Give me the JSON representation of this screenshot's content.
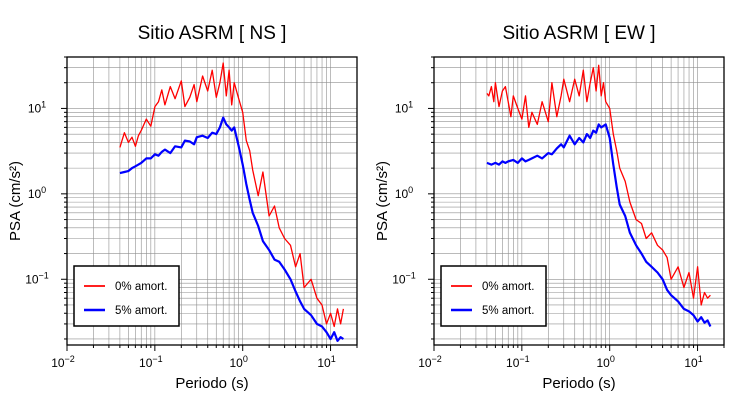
{
  "chart_data": [
    {
      "type": "line",
      "title": "Sitio ASRM [ NS ]",
      "xlabel": "Periodo (s)",
      "ylabel": "PSA (cm/s²)",
      "xscale": "log",
      "yscale": "log",
      "xlim": [
        0.01,
        20
      ],
      "ylim": [
        0.017,
        40
      ],
      "grid": true,
      "legend_position": "bottom-left",
      "x_ticks": [
        {
          "base": "10",
          "exp": "−2",
          "value": 0.01
        },
        {
          "base": "10",
          "exp": "−1",
          "value": 0.1
        },
        {
          "base": "10",
          "exp": "0",
          "value": 1
        },
        {
          "base": "10",
          "exp": "1",
          "value": 10
        }
      ],
      "y_ticks": [
        {
          "base": "10",
          "exp": "−1",
          "value": 0.1
        },
        {
          "base": "10",
          "exp": "0",
          "value": 1
        },
        {
          "base": "10",
          "exp": "1",
          "value": 10
        }
      ],
      "series": [
        {
          "name": "0% amort.",
          "color": "#ff0000",
          "x": [
            0.04,
            0.045,
            0.05,
            0.055,
            0.06,
            0.065,
            0.07,
            0.08,
            0.09,
            0.1,
            0.11,
            0.12,
            0.13,
            0.15,
            0.17,
            0.2,
            0.22,
            0.25,
            0.28,
            0.3,
            0.35,
            0.4,
            0.45,
            0.5,
            0.55,
            0.6,
            0.65,
            0.7,
            0.75,
            0.8,
            0.9,
            1.0,
            1.1,
            1.2,
            1.3,
            1.5,
            1.7,
            2.0,
            2.3,
            2.6,
            3.0,
            3.5,
            4.0,
            4.5,
            5.0,
            6.0,
            7.0,
            8.0,
            9.0,
            10.0,
            11.0,
            12.0,
            13.0,
            14.0
          ],
          "values": [
            3.5,
            5.2,
            4.0,
            4.6,
            3.6,
            4.8,
            5.5,
            7.5,
            6.2,
            10.5,
            12.0,
            16.5,
            11.0,
            18.0,
            13.0,
            21.0,
            10.5,
            13.5,
            19.0,
            12.0,
            24.0,
            16.0,
            28.0,
            13.5,
            20.0,
            34.0,
            14.0,
            28.0,
            11.0,
            20.0,
            13.0,
            9.0,
            4.2,
            3.2,
            1.9,
            0.95,
            1.8,
            0.55,
            0.72,
            0.4,
            0.3,
            0.25,
            0.14,
            0.2,
            0.08,
            0.1,
            0.06,
            0.05,
            0.03,
            0.04,
            0.028,
            0.045,
            0.03,
            0.045
          ]
        },
        {
          "name": "5% amort.",
          "color": "#0000ff",
          "x": [
            0.04,
            0.045,
            0.05,
            0.055,
            0.06,
            0.065,
            0.07,
            0.08,
            0.09,
            0.1,
            0.11,
            0.12,
            0.13,
            0.15,
            0.17,
            0.2,
            0.22,
            0.25,
            0.28,
            0.3,
            0.35,
            0.4,
            0.45,
            0.5,
            0.55,
            0.6,
            0.65,
            0.7,
            0.75,
            0.8,
            0.9,
            1.0,
            1.1,
            1.2,
            1.3,
            1.5,
            1.7,
            2.0,
            2.3,
            2.6,
            3.0,
            3.5,
            4.0,
            4.5,
            5.0,
            6.0,
            7.0,
            8.0,
            9.0,
            10.0,
            11.0,
            12.0,
            13.0,
            14.0
          ],
          "values": [
            1.75,
            1.8,
            1.85,
            2.0,
            2.1,
            2.2,
            2.3,
            2.6,
            2.6,
            2.9,
            2.8,
            3.1,
            3.3,
            3.0,
            3.6,
            3.5,
            4.2,
            4.1,
            3.8,
            4.6,
            4.8,
            4.5,
            5.2,
            5.0,
            6.0,
            7.8,
            6.5,
            6.0,
            5.5,
            6.0,
            3.6,
            2.2,
            1.3,
            0.85,
            0.6,
            0.42,
            0.28,
            0.22,
            0.17,
            0.16,
            0.13,
            0.1,
            0.072,
            0.055,
            0.045,
            0.038,
            0.03,
            0.028,
            0.024,
            0.02,
            0.024,
            0.019,
            0.021,
            0.02
          ]
        }
      ]
    },
    {
      "type": "line",
      "title": "Sitio ASRM [ EW ]",
      "xlabel": "Periodo (s)",
      "ylabel": "PSA (cm/s²)",
      "xscale": "log",
      "yscale": "log",
      "xlim": [
        0.01,
        20
      ],
      "ylim": [
        0.017,
        40
      ],
      "grid": true,
      "legend_position": "bottom-left",
      "x_ticks": [
        {
          "base": "10",
          "exp": "−2",
          "value": 0.01
        },
        {
          "base": "10",
          "exp": "−1",
          "value": 0.1
        },
        {
          "base": "10",
          "exp": "0",
          "value": 1
        },
        {
          "base": "10",
          "exp": "1",
          "value": 10
        }
      ],
      "y_ticks": [
        {
          "base": "10",
          "exp": "−1",
          "value": 0.1
        },
        {
          "base": "10",
          "exp": "0",
          "value": 1
        },
        {
          "base": "10",
          "exp": "1",
          "value": 10
        }
      ],
      "series": [
        {
          "name": "0% amort.",
          "color": "#ff0000",
          "x": [
            0.04,
            0.042,
            0.045,
            0.048,
            0.05,
            0.055,
            0.06,
            0.065,
            0.07,
            0.075,
            0.08,
            0.09,
            0.1,
            0.11,
            0.12,
            0.13,
            0.15,
            0.17,
            0.2,
            0.22,
            0.25,
            0.28,
            0.3,
            0.35,
            0.4,
            0.45,
            0.5,
            0.55,
            0.6,
            0.65,
            0.7,
            0.75,
            0.8,
            0.85,
            0.9,
            1.0,
            1.1,
            1.2,
            1.3,
            1.5,
            1.7,
            2.0,
            2.3,
            2.6,
            3.0,
            3.5,
            4.0,
            4.5,
            5.0,
            6.0,
            7.0,
            8.0,
            9.0,
            10.0,
            11.0,
            12.0,
            13.0,
            14.0
          ],
          "values": [
            15.0,
            14.0,
            18.0,
            12.0,
            20.0,
            10.5,
            16.0,
            18.0,
            12.0,
            8.0,
            14.0,
            10.0,
            7.5,
            14.0,
            6.0,
            9.0,
            6.5,
            12.0,
            7.0,
            20.0,
            8.0,
            14.0,
            22.0,
            12.0,
            22.0,
            14.0,
            28.0,
            12.0,
            20.0,
            30.0,
            16.0,
            32.0,
            14.0,
            20.0,
            12.0,
            10.0,
            5.0,
            3.2,
            2.0,
            1.4,
            0.8,
            0.5,
            0.45,
            0.3,
            0.35,
            0.25,
            0.22,
            0.18,
            0.1,
            0.14,
            0.08,
            0.12,
            0.06,
            0.14,
            0.05,
            0.07,
            0.06,
            0.065
          ]
        },
        {
          "name": "5% amort.",
          "color": "#0000ff",
          "x": [
            0.04,
            0.045,
            0.05,
            0.055,
            0.06,
            0.065,
            0.07,
            0.08,
            0.09,
            0.1,
            0.11,
            0.12,
            0.13,
            0.15,
            0.17,
            0.2,
            0.22,
            0.25,
            0.28,
            0.3,
            0.35,
            0.4,
            0.45,
            0.5,
            0.55,
            0.6,
            0.65,
            0.7,
            0.75,
            0.8,
            0.9,
            1.0,
            1.1,
            1.2,
            1.3,
            1.5,
            1.7,
            2.0,
            2.3,
            2.6,
            3.0,
            3.5,
            4.0,
            4.5,
            5.0,
            6.0,
            7.0,
            8.0,
            9.0,
            10.0,
            11.0,
            12.0,
            13.0,
            14.0
          ],
          "values": [
            2.3,
            2.2,
            2.3,
            2.2,
            2.4,
            2.3,
            2.4,
            2.5,
            2.3,
            2.6,
            2.4,
            2.5,
            2.6,
            2.8,
            2.6,
            3.0,
            2.9,
            3.4,
            3.8,
            3.5,
            4.8,
            3.8,
            4.5,
            4.0,
            5.0,
            4.5,
            5.5,
            5.2,
            6.5,
            6.0,
            6.5,
            4.5,
            2.2,
            1.2,
            0.75,
            0.55,
            0.35,
            0.25,
            0.2,
            0.16,
            0.14,
            0.12,
            0.1,
            0.075,
            0.065,
            0.055,
            0.045,
            0.042,
            0.038,
            0.032,
            0.036,
            0.031,
            0.033,
            0.028
          ]
        }
      ]
    }
  ]
}
